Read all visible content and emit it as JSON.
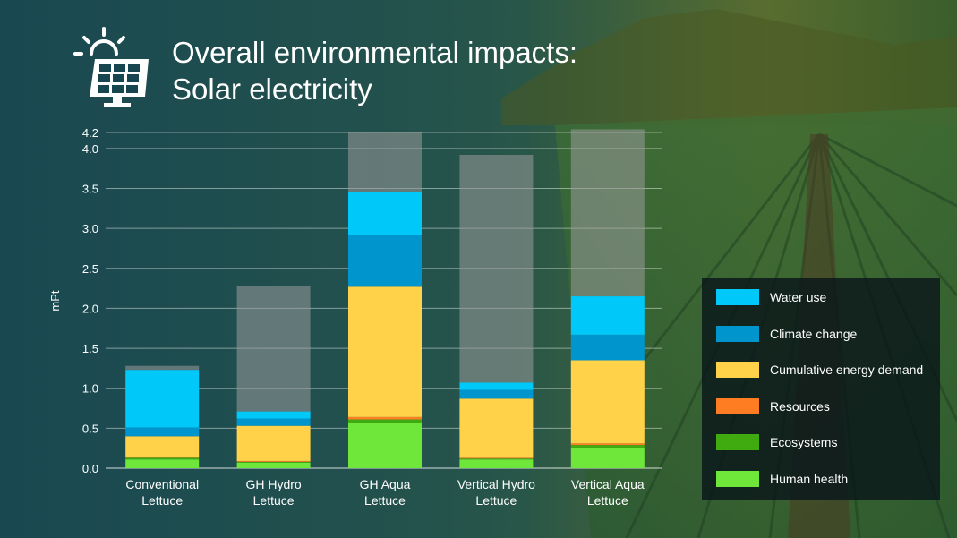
{
  "title": {
    "line1": "Overall environmental impacts:",
    "line2": "Solar electricity"
  },
  "colors": {
    "water_use": "#00c8f8",
    "climate_change": "#0095cc",
    "cumulative_energy_demand": "#ffd24a",
    "resources": "#ff7d22",
    "ecosystems": "#3fab10",
    "human_health": "#6ee63a",
    "other": "#9a9a9a"
  },
  "chart_data": {
    "type": "bar",
    "stacked": true,
    "ylabel": "mPt",
    "ylim": [
      0,
      4.2
    ],
    "yticks": [
      "0.0",
      "0.5",
      "1.0",
      "1.5",
      "2.0",
      "2.5",
      "3.0",
      "3.5",
      "4.0",
      "4.2"
    ],
    "ytick_values": [
      0,
      0.5,
      1.0,
      1.5,
      2.0,
      2.5,
      3.0,
      3.5,
      4.0,
      4.2
    ],
    "grid": true,
    "legend_position": "right",
    "categories": [
      [
        "Conventional",
        "Lettuce"
      ],
      [
        "GH Hydro",
        "Lettuce"
      ],
      [
        "GH Aqua",
        "Lettuce"
      ],
      [
        "Vertical Hydro",
        "Lettuce"
      ],
      [
        "Vertical Aqua",
        "Lettuce"
      ]
    ],
    "series": [
      {
        "name": "Human health",
        "color_key": "human_health",
        "values": [
          0.11,
          0.07,
          0.57,
          0.11,
          0.25
        ]
      },
      {
        "name": "Ecosystems",
        "color_key": "ecosystems",
        "values": [
          0.02,
          0.01,
          0.04,
          0.01,
          0.04
        ]
      },
      {
        "name": "Resources",
        "color_key": "resources",
        "values": [
          0.01,
          0.01,
          0.03,
          0.01,
          0.02
        ]
      },
      {
        "name": "Cumulative energy demand",
        "color_key": "cumulative_energy_demand",
        "values": [
          0.26,
          0.44,
          1.63,
          0.74,
          1.04
        ]
      },
      {
        "name": "Climate change",
        "color_key": "climate_change",
        "values": [
          0.11,
          0.09,
          0.65,
          0.11,
          0.32
        ]
      },
      {
        "name": "Water use",
        "color_key": "water_use",
        "values": [
          0.72,
          0.09,
          0.54,
          0.09,
          0.48
        ]
      },
      {
        "name": "",
        "color_key": "other",
        "values": [
          0.05,
          1.57,
          0.74,
          2.85,
          2.09
        ]
      }
    ]
  },
  "legend": {
    "items": [
      {
        "label": "Water use",
        "color_key": "water_use"
      },
      {
        "label": "Climate change",
        "color_key": "climate_change"
      },
      {
        "label": "Cumulative energy demand",
        "color_key": "cumulative_energy_demand"
      },
      {
        "label": "Resources",
        "color_key": "resources"
      },
      {
        "label": "Ecosystems",
        "color_key": "ecosystems"
      },
      {
        "label": "Human health",
        "color_key": "human_health"
      }
    ]
  }
}
